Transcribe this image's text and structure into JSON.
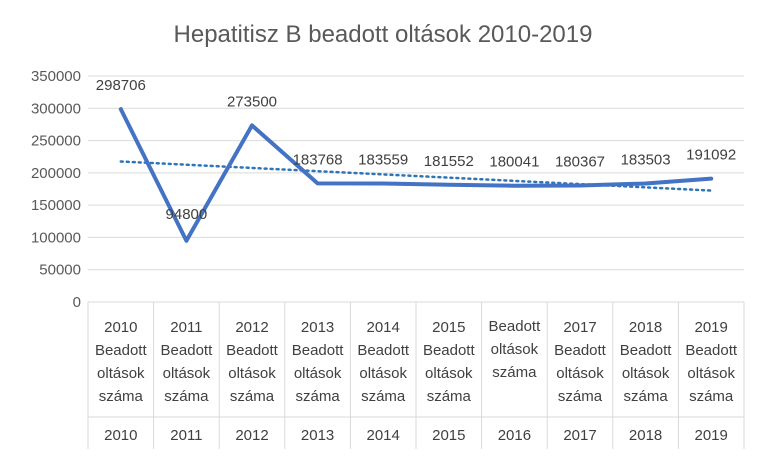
{
  "chart_data": {
    "type": "line",
    "title": "Hepatitisz B beadott oltások 2010-2019",
    "ylim": [
      0,
      350000
    ],
    "yticks": [
      "350000",
      "300000",
      "250000",
      "200000",
      "150000",
      "100000",
      "50000",
      "0"
    ],
    "grid": true,
    "legend": "none",
    "categories": [
      {
        "inner": [
          "2010",
          "Beadott",
          "oltások",
          "száma"
        ],
        "outer": "2010"
      },
      {
        "inner": [
          "2011",
          "Beadott",
          "oltások",
          "száma"
        ],
        "outer": "2011"
      },
      {
        "inner": [
          "2012",
          "Beadott",
          "oltások",
          "száma"
        ],
        "outer": "2012"
      },
      {
        "inner": [
          "2013",
          "Beadott",
          "oltások",
          "száma"
        ],
        "outer": "2013"
      },
      {
        "inner": [
          "2014",
          "Beadott",
          "oltások",
          "száma"
        ],
        "outer": "2014"
      },
      {
        "inner": [
          "2015",
          "Beadott",
          "oltások",
          "száma"
        ],
        "outer": "2015"
      },
      {
        "inner": [
          "Beadott",
          "oltások",
          "száma"
        ],
        "outer": "2016"
      },
      {
        "inner": [
          "2017",
          "Beadott",
          "oltások",
          "száma"
        ],
        "outer": "2017"
      },
      {
        "inner": [
          "2018",
          "Beadott",
          "oltások",
          "száma"
        ],
        "outer": "2018"
      },
      {
        "inner": [
          "2019",
          "Beadott",
          "oltások",
          "száma"
        ],
        "outer": "2019"
      }
    ],
    "series": [
      {
        "values": [
          298706,
          94800,
          273500,
          183768,
          183559,
          181552,
          180041,
          180367,
          183503,
          191092
        ],
        "data_labels": [
          "298706",
          "94800",
          "273500",
          "183768",
          "183559",
          "181552",
          "180041",
          "180367",
          "183503",
          "191092"
        ],
        "color": "#4472c4"
      }
    ],
    "trendline": {
      "type": "linear",
      "style": "dotted",
      "color": "#2e75b6"
    }
  }
}
